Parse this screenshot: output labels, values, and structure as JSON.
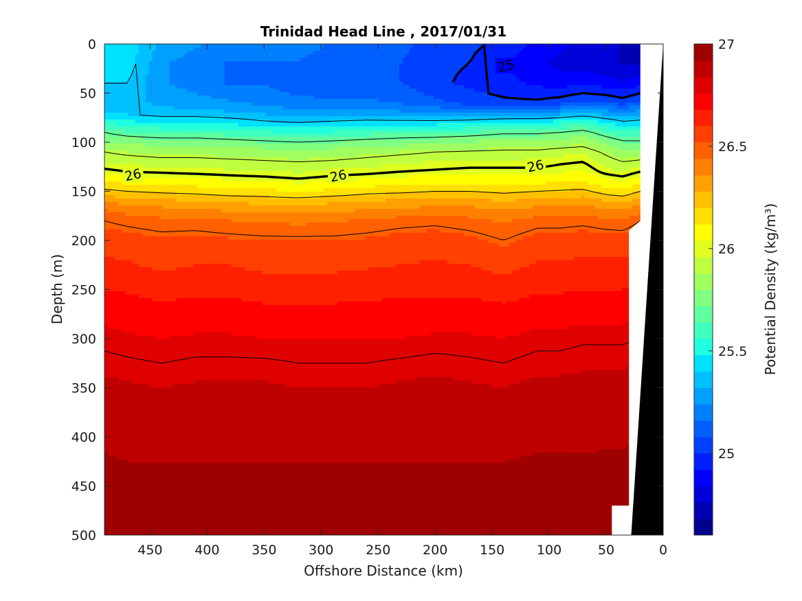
{
  "chart_data": {
    "type": "heatmap",
    "title": "Trinidad Head Line , 2017/01/31",
    "xlabel": "Offshore Distance (km)",
    "ylabel": "Depth (m)",
    "colorbar_label": "Potential Density (kg/m³)",
    "x_reversed": true,
    "y_reversed": true,
    "xlim": [
      490,
      0
    ],
    "ylim": [
      0,
      500
    ],
    "xticks": [
      450,
      400,
      350,
      300,
      250,
      200,
      150,
      100,
      50,
      0
    ],
    "xtick_labels": [
      "450",
      "400",
      "350",
      "300",
      "250",
      "200",
      "150",
      "100",
      "50",
      "0"
    ],
    "yticks": [
      0,
      50,
      100,
      150,
      200,
      250,
      300,
      350,
      400,
      450,
      500
    ],
    "ytick_labels": [
      "0",
      "50",
      "100",
      "150",
      "200",
      "250",
      "300",
      "350",
      "400",
      "450",
      "500"
    ],
    "clim": [
      24.6,
      27.0
    ],
    "cticks": [
      25,
      25.5,
      26,
      26.5,
      27
    ],
    "ctick_labels": [
      "25",
      "25.5",
      "26",
      "26.5",
      "27"
    ],
    "colormap_levels": [
      "#00008f",
      "#0000b3",
      "#0000d9",
      "#0000ff",
      "#0020ff",
      "#0040ff",
      "#0060ff",
      "#0080ff",
      "#00a0ff",
      "#00c0ff",
      "#00e0ff",
      "#20ffdf",
      "#40ffbf",
      "#60ff9f",
      "#80ff80",
      "#a0ff60",
      "#c0ff40",
      "#e0ff20",
      "#ffff00",
      "#ffe000",
      "#ffc000",
      "#ffa000",
      "#ff8000",
      "#ff6000",
      "#ff4000",
      "#ff2000",
      "#ff0000",
      "#df0000",
      "#bf0000",
      "#9f0000"
    ],
    "profile_x": [
      490,
      470,
      440,
      410,
      380,
      350,
      320,
      290,
      260,
      230,
      200,
      170,
      140,
      110,
      90,
      70,
      50,
      35,
      20
    ],
    "profile_depths": [
      0,
      20,
      40,
      60,
      70,
      80,
      90,
      100,
      110,
      120,
      130,
      140,
      150,
      160,
      170,
      180,
      200,
      225,
      250,
      275,
      300,
      325,
      350,
      375,
      400,
      425,
      450,
      475,
      500
    ],
    "density_profiles": [
      [
        25.45,
        25.45,
        25.4,
        25.35,
        25.4,
        25.55,
        25.7,
        25.8,
        25.9,
        25.95,
        26.02,
        26.12,
        26.22,
        26.35,
        26.45,
        26.5,
        26.56,
        26.62,
        26.68,
        26.74,
        26.78,
        26.82,
        26.86,
        26.88,
        26.9,
        26.93,
        26.96,
        26.98,
        27.0
      ],
      [
        25.45,
        25.45,
        25.4,
        25.35,
        25.38,
        25.5,
        25.65,
        25.78,
        25.88,
        25.94,
        26.0,
        26.1,
        26.2,
        26.32,
        26.42,
        26.48,
        26.55,
        26.61,
        26.67,
        26.73,
        26.77,
        26.81,
        26.85,
        26.87,
        26.89,
        26.92,
        26.95,
        26.98,
        27.0
      ],
      [
        25.3,
        25.25,
        25.25,
        25.3,
        25.35,
        25.48,
        25.62,
        25.76,
        25.86,
        25.93,
        25.99,
        26.08,
        26.18,
        26.3,
        26.4,
        26.46,
        26.53,
        26.58,
        26.65,
        26.71,
        26.76,
        26.8,
        26.84,
        26.86,
        26.89,
        26.92,
        26.95,
        26.98,
        27.0
      ],
      [
        25.25,
        25.2,
        25.2,
        25.28,
        25.35,
        25.48,
        25.62,
        25.76,
        25.86,
        25.93,
        25.98,
        26.07,
        26.17,
        26.28,
        26.38,
        26.46,
        26.54,
        26.6,
        26.66,
        26.72,
        26.77,
        26.81,
        26.85,
        26.87,
        26.89,
        26.92,
        26.95,
        26.98,
        27.0
      ],
      [
        25.2,
        25.15,
        25.15,
        25.25,
        25.33,
        25.46,
        25.6,
        25.74,
        25.85,
        25.92,
        25.97,
        26.05,
        26.15,
        26.26,
        26.36,
        26.44,
        26.53,
        26.6,
        26.66,
        26.72,
        26.77,
        26.81,
        26.85,
        26.87,
        26.89,
        26.92,
        26.95,
        26.98,
        27.0
      ],
      [
        25.2,
        25.15,
        25.15,
        25.22,
        25.3,
        25.42,
        25.58,
        25.72,
        25.84,
        25.91,
        25.96,
        26.04,
        26.14,
        26.25,
        26.35,
        26.43,
        26.52,
        26.58,
        26.64,
        26.71,
        26.76,
        26.81,
        26.85,
        26.87,
        26.89,
        26.92,
        26.95,
        26.97,
        27.0
      ],
      [
        25.2,
        25.15,
        25.12,
        25.18,
        25.27,
        25.4,
        25.55,
        25.7,
        25.82,
        25.9,
        25.95,
        26.02,
        26.12,
        26.24,
        26.34,
        26.42,
        26.52,
        26.58,
        26.64,
        26.71,
        26.76,
        26.8,
        26.84,
        26.86,
        26.89,
        26.92,
        26.95,
        26.97,
        27.0
      ],
      [
        25.15,
        25.12,
        25.1,
        25.18,
        25.28,
        25.42,
        25.57,
        25.72,
        25.84,
        25.91,
        25.97,
        26.04,
        26.14,
        26.26,
        26.35,
        26.43,
        26.52,
        26.58,
        26.64,
        26.71,
        26.76,
        26.8,
        26.84,
        26.86,
        26.89,
        26.92,
        26.95,
        26.97,
        27.0
      ],
      [
        25.12,
        25.1,
        25.1,
        25.18,
        25.28,
        25.44,
        25.6,
        25.74,
        25.86,
        25.93,
        25.98,
        26.06,
        26.17,
        26.28,
        26.37,
        26.45,
        26.53,
        26.59,
        26.65,
        26.71,
        26.76,
        26.8,
        26.84,
        26.86,
        26.89,
        26.92,
        26.95,
        26.97,
        27.0
      ],
      [
        25.1,
        25.08,
        25.08,
        25.15,
        25.26,
        25.44,
        25.62,
        25.76,
        25.88,
        25.95,
        26.0,
        26.08,
        26.18,
        26.3,
        26.39,
        26.47,
        26.55,
        26.6,
        26.66,
        26.72,
        26.76,
        26.81,
        26.85,
        26.87,
        26.89,
        26.92,
        26.95,
        26.97,
        27.0
      ],
      [
        25.05,
        25.02,
        25.02,
        25.1,
        25.24,
        25.44,
        25.62,
        25.78,
        25.9,
        25.96,
        26.01,
        26.1,
        26.2,
        26.31,
        26.4,
        26.48,
        26.56,
        26.61,
        26.66,
        26.72,
        26.77,
        26.82,
        26.86,
        26.87,
        26.89,
        26.92,
        26.95,
        26.97,
        27.0
      ],
      [
        25.02,
        25.0,
        24.98,
        25.05,
        25.22,
        25.46,
        25.64,
        25.8,
        25.91,
        25.97,
        26.02,
        26.1,
        26.2,
        26.31,
        26.4,
        26.46,
        26.54,
        26.6,
        26.66,
        26.72,
        26.77,
        26.81,
        26.85,
        26.87,
        26.89,
        26.92,
        26.95,
        26.97,
        27.0
      ],
      [
        24.98,
        24.92,
        24.95,
        25.02,
        25.24,
        25.5,
        25.68,
        25.82,
        25.92,
        25.97,
        26.02,
        26.09,
        26.18,
        26.28,
        26.37,
        26.43,
        26.5,
        26.57,
        26.64,
        26.71,
        26.76,
        26.8,
        26.84,
        26.86,
        26.89,
        26.92,
        26.95,
        26.97,
        27.0
      ],
      [
        24.9,
        24.85,
        24.9,
        25.02,
        25.25,
        25.5,
        25.68,
        25.82,
        25.92,
        25.97,
        26.02,
        26.1,
        26.2,
        26.31,
        26.4,
        26.47,
        26.55,
        26.61,
        26.67,
        26.73,
        26.78,
        26.82,
        26.86,
        26.88,
        26.9,
        26.93,
        26.95,
        26.97,
        27.0
      ],
      [
        24.85,
        24.82,
        24.88,
        25.05,
        25.28,
        25.52,
        25.7,
        25.84,
        25.94,
        25.99,
        26.03,
        26.11,
        26.21,
        26.32,
        26.4,
        26.47,
        26.55,
        26.61,
        26.67,
        26.73,
        26.78,
        26.82,
        26.86,
        26.88,
        26.9,
        26.93,
        26.95,
        26.97,
        27.0
      ],
      [
        24.82,
        24.8,
        24.9,
        25.1,
        25.32,
        25.56,
        25.74,
        25.86,
        25.95,
        26.0,
        26.04,
        26.12,
        26.22,
        26.33,
        26.41,
        26.48,
        26.56,
        26.62,
        26.68,
        26.74,
        26.79,
        26.83,
        26.86,
        26.88,
        26.9,
        26.93,
        26.95,
        26.97,
        27.0
      ],
      [
        24.8,
        24.78,
        24.88,
        25.08,
        25.28,
        25.48,
        25.64,
        25.78,
        25.88,
        25.94,
        25.98,
        26.06,
        26.16,
        26.28,
        26.38,
        26.46,
        26.55,
        26.62,
        26.68,
        26.74,
        26.79,
        26.83,
        26.87,
        26.89,
        26.91,
        26.93,
        26.95,
        26.97,
        27.0
      ],
      [
        24.75,
        24.75,
        24.85,
        25.05,
        25.25,
        25.42,
        25.58,
        25.72,
        25.82,
        25.9,
        25.96,
        26.04,
        26.14,
        26.26,
        26.37,
        26.45,
        26.55,
        26.62,
        26.68,
        26.74,
        26.79,
        26.83,
        26.87,
        26.89,
        26.91,
        26.93,
        26.96,
        26.98,
        27.0
      ],
      [
        24.75,
        24.75,
        24.9,
        25.1,
        25.28,
        25.44,
        25.58,
        25.72,
        25.82,
        25.92,
        26.0,
        26.1,
        26.2,
        26.32,
        26.42,
        26.5,
        26.58,
        26.64,
        26.7,
        26.75,
        26.8,
        26.84,
        26.88,
        26.9,
        26.92,
        26.94,
        26.96,
        26.98,
        27.0
      ]
    ],
    "contour_labels": [
      {
        "text": "25",
        "x": 138,
        "y": 22
      },
      {
        "text": "26",
        "x": 465,
        "y": 133
      },
      {
        "text": "26",
        "x": 285,
        "y": 134
      },
      {
        "text": "26",
        "x": 112,
        "y": 124
      }
    ],
    "land_shelf_outline": [
      [
        20,
        0
      ],
      [
        20,
        180
      ],
      [
        30,
        190
      ],
      [
        30,
        470
      ],
      [
        45,
        470
      ],
      [
        45,
        500
      ],
      [
        0,
        500
      ],
      [
        0,
        0
      ]
    ],
    "bottom_outline": [
      [
        0,
        0
      ],
      [
        28,
        500
      ],
      [
        0,
        500
      ]
    ]
  }
}
